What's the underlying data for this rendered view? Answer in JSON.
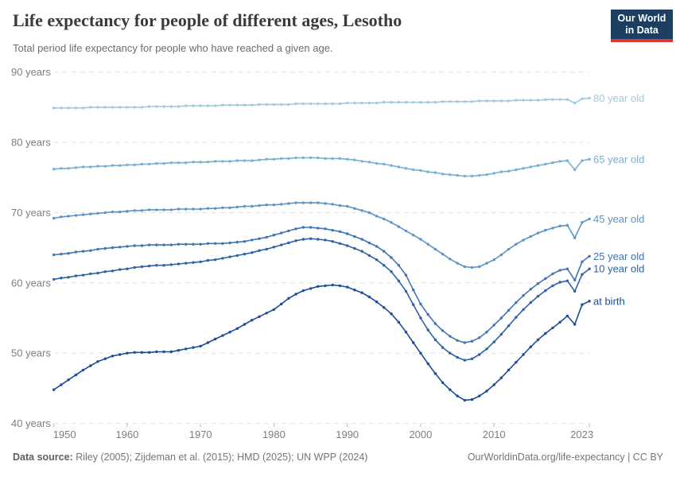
{
  "header": {
    "title": "Life expectancy for people of different ages, Lesotho",
    "subtitle": "Total period life expectancy for people who have reached a given age.",
    "logo": {
      "line1": "Our World",
      "line2": "in Data"
    }
  },
  "footer": {
    "source_label": "Data source:",
    "source_text": " Riley (2005); Zijdeman et al. (2015); HMD (2025); UN WPP (2024)",
    "link": "OurWorldinData.org/life-expectancy",
    "separator_license": " | CC BY"
  },
  "colors": {
    "logo_navy": "#1c3e61",
    "logo_red": "#d73933",
    "grid": "#e2e2e2",
    "axis_text": "#7e7e7e"
  },
  "chart_data": {
    "type": "line",
    "title": "Life expectancy for people of different ages, Lesotho",
    "subtitle": "Total period life expectancy for people who have reached a given age.",
    "xlim": [
      1950,
      2023
    ],
    "ylim": [
      40,
      90
    ],
    "grid": "horizontal-dashed",
    "legend_position": "right-end-labels",
    "y_ticks": [
      90,
      80,
      70,
      60,
      50,
      40
    ],
    "y_tick_labels": [
      "90 years",
      "80 years",
      "70 years",
      "60 years",
      "50 years",
      "40 years"
    ],
    "x_ticks": [
      1950,
      1960,
      1970,
      1980,
      1990,
      2000,
      2010,
      2023
    ],
    "x_tick_labels": [
      "1950",
      "1960",
      "1970",
      "1980",
      "1990",
      "2000",
      "2010",
      "2023"
    ],
    "x": [
      1950,
      1951,
      1952,
      1953,
      1954,
      1955,
      1956,
      1957,
      1958,
      1959,
      1960,
      1961,
      1962,
      1963,
      1964,
      1965,
      1966,
      1967,
      1968,
      1969,
      1970,
      1971,
      1972,
      1973,
      1974,
      1975,
      1976,
      1977,
      1978,
      1979,
      1980,
      1981,
      1982,
      1983,
      1984,
      1985,
      1986,
      1987,
      1988,
      1989,
      1990,
      1991,
      1992,
      1993,
      1994,
      1995,
      1996,
      1997,
      1998,
      1999,
      2000,
      2001,
      2002,
      2003,
      2004,
      2005,
      2006,
      2007,
      2008,
      2009,
      2010,
      2011,
      2012,
      2013,
      2014,
      2015,
      2016,
      2017,
      2018,
      2019,
      2020,
      2021,
      2022,
      2023
    ],
    "series": [
      {
        "id": "80-year-old",
        "name": "80 year old",
        "color": "#a3c9dc",
        "values": [
          84.9,
          84.9,
          84.9,
          84.9,
          84.9,
          85.0,
          85.0,
          85.0,
          85.0,
          85.0,
          85.0,
          85.0,
          85.0,
          85.1,
          85.1,
          85.1,
          85.1,
          85.1,
          85.2,
          85.2,
          85.2,
          85.2,
          85.2,
          85.3,
          85.3,
          85.3,
          85.3,
          85.3,
          85.4,
          85.4,
          85.4,
          85.4,
          85.4,
          85.5,
          85.5,
          85.5,
          85.5,
          85.5,
          85.5,
          85.5,
          85.6,
          85.6,
          85.6,
          85.6,
          85.6,
          85.7,
          85.7,
          85.7,
          85.7,
          85.7,
          85.7,
          85.7,
          85.7,
          85.8,
          85.8,
          85.8,
          85.8,
          85.8,
          85.9,
          85.9,
          85.9,
          85.9,
          85.9,
          86.0,
          86.0,
          86.0,
          86.0,
          86.1,
          86.1,
          86.1,
          86.1,
          85.6,
          86.2,
          86.3
        ]
      },
      {
        "id": "65-year-old",
        "name": "65 year old",
        "color": "#79afd1",
        "values": [
          76.2,
          76.3,
          76.3,
          76.4,
          76.5,
          76.5,
          76.6,
          76.6,
          76.7,
          76.7,
          76.8,
          76.8,
          76.9,
          76.9,
          77.0,
          77.0,
          77.1,
          77.1,
          77.1,
          77.2,
          77.2,
          77.2,
          77.3,
          77.3,
          77.3,
          77.4,
          77.4,
          77.4,
          77.5,
          77.6,
          77.6,
          77.7,
          77.7,
          77.8,
          77.8,
          77.8,
          77.8,
          77.7,
          77.7,
          77.7,
          77.6,
          77.5,
          77.3,
          77.2,
          77.0,
          76.9,
          76.7,
          76.5,
          76.3,
          76.1,
          76.0,
          75.8,
          75.7,
          75.5,
          75.4,
          75.3,
          75.2,
          75.2,
          75.3,
          75.4,
          75.6,
          75.8,
          75.9,
          76.1,
          76.3,
          76.5,
          76.7,
          76.9,
          77.1,
          77.3,
          77.4,
          76.1,
          77.4,
          77.6
        ]
      },
      {
        "id": "45-year-old",
        "name": "45 year old",
        "color": "#5f93c3",
        "values": [
          69.2,
          69.4,
          69.5,
          69.6,
          69.7,
          69.8,
          69.9,
          70.0,
          70.1,
          70.1,
          70.2,
          70.3,
          70.3,
          70.4,
          70.4,
          70.4,
          70.4,
          70.5,
          70.5,
          70.5,
          70.5,
          70.6,
          70.6,
          70.7,
          70.7,
          70.8,
          70.9,
          70.9,
          71.0,
          71.1,
          71.1,
          71.2,
          71.3,
          71.4,
          71.4,
          71.4,
          71.4,
          71.3,
          71.2,
          71.0,
          70.9,
          70.6,
          70.3,
          70.0,
          69.5,
          69.1,
          68.6,
          68.0,
          67.4,
          66.8,
          66.2,
          65.5,
          64.8,
          64.1,
          63.4,
          62.8,
          62.3,
          62.2,
          62.3,
          62.8,
          63.3,
          64.0,
          64.8,
          65.5,
          66.1,
          66.6,
          67.1,
          67.5,
          67.8,
          68.1,
          68.2,
          66.4,
          68.6,
          69.1
        ]
      },
      {
        "id": "25-year-old",
        "name": "25 year old",
        "color": "#4175b2",
        "values": [
          64.0,
          64.1,
          64.2,
          64.4,
          64.5,
          64.6,
          64.8,
          64.9,
          65.0,
          65.1,
          65.2,
          65.3,
          65.3,
          65.4,
          65.4,
          65.4,
          65.4,
          65.5,
          65.5,
          65.5,
          65.5,
          65.6,
          65.6,
          65.6,
          65.7,
          65.8,
          65.9,
          66.1,
          66.3,
          66.5,
          66.8,
          67.1,
          67.4,
          67.7,
          67.9,
          67.9,
          67.8,
          67.7,
          67.5,
          67.3,
          67.0,
          66.6,
          66.2,
          65.7,
          65.2,
          64.5,
          63.6,
          62.5,
          61.1,
          59.0,
          57.0,
          55.5,
          54.2,
          53.2,
          52.4,
          51.8,
          51.5,
          51.7,
          52.2,
          53.0,
          54.0,
          55.0,
          56.1,
          57.2,
          58.2,
          59.1,
          59.9,
          60.6,
          61.3,
          61.8,
          62.0,
          60.4,
          63.0,
          63.8
        ]
      },
      {
        "id": "10-year-old",
        "name": "10 year old",
        "color": "#2e61a6",
        "values": [
          60.5,
          60.7,
          60.8,
          61.0,
          61.1,
          61.3,
          61.4,
          61.6,
          61.7,
          61.9,
          62.0,
          62.2,
          62.3,
          62.4,
          62.5,
          62.5,
          62.6,
          62.7,
          62.8,
          62.9,
          63.0,
          63.2,
          63.3,
          63.5,
          63.7,
          63.9,
          64.1,
          64.3,
          64.6,
          64.8,
          65.1,
          65.4,
          65.7,
          66.0,
          66.2,
          66.3,
          66.2,
          66.1,
          65.9,
          65.6,
          65.3,
          64.9,
          64.5,
          63.9,
          63.3,
          62.5,
          61.6,
          60.3,
          58.8,
          56.9,
          55.0,
          53.3,
          51.9,
          50.8,
          50.0,
          49.4,
          49.0,
          49.2,
          49.8,
          50.6,
          51.6,
          52.7,
          53.9,
          55.1,
          56.2,
          57.2,
          58.1,
          58.9,
          59.6,
          60.1,
          60.3,
          58.8,
          61.2,
          62.0
        ]
      },
      {
        "id": "at-birth",
        "name": "at birth",
        "color": "#1d4c96",
        "values": [
          44.8,
          45.5,
          46.2,
          46.9,
          47.6,
          48.2,
          48.8,
          49.2,
          49.6,
          49.8,
          50.0,
          50.1,
          50.1,
          50.1,
          50.2,
          50.2,
          50.2,
          50.4,
          50.6,
          50.8,
          51.0,
          51.5,
          52.0,
          52.5,
          53.0,
          53.5,
          54.1,
          54.7,
          55.2,
          55.7,
          56.2,
          57.0,
          57.8,
          58.4,
          58.9,
          59.2,
          59.5,
          59.6,
          59.7,
          59.6,
          59.4,
          59.0,
          58.6,
          58.0,
          57.3,
          56.5,
          55.6,
          54.4,
          53.0,
          51.5,
          50.0,
          48.5,
          47.1,
          45.8,
          44.8,
          43.9,
          43.3,
          43.4,
          43.9,
          44.6,
          45.5,
          46.5,
          47.6,
          48.7,
          49.8,
          50.9,
          51.9,
          52.8,
          53.6,
          54.4,
          55.3,
          54.1,
          56.9,
          57.4
        ]
      }
    ]
  }
}
